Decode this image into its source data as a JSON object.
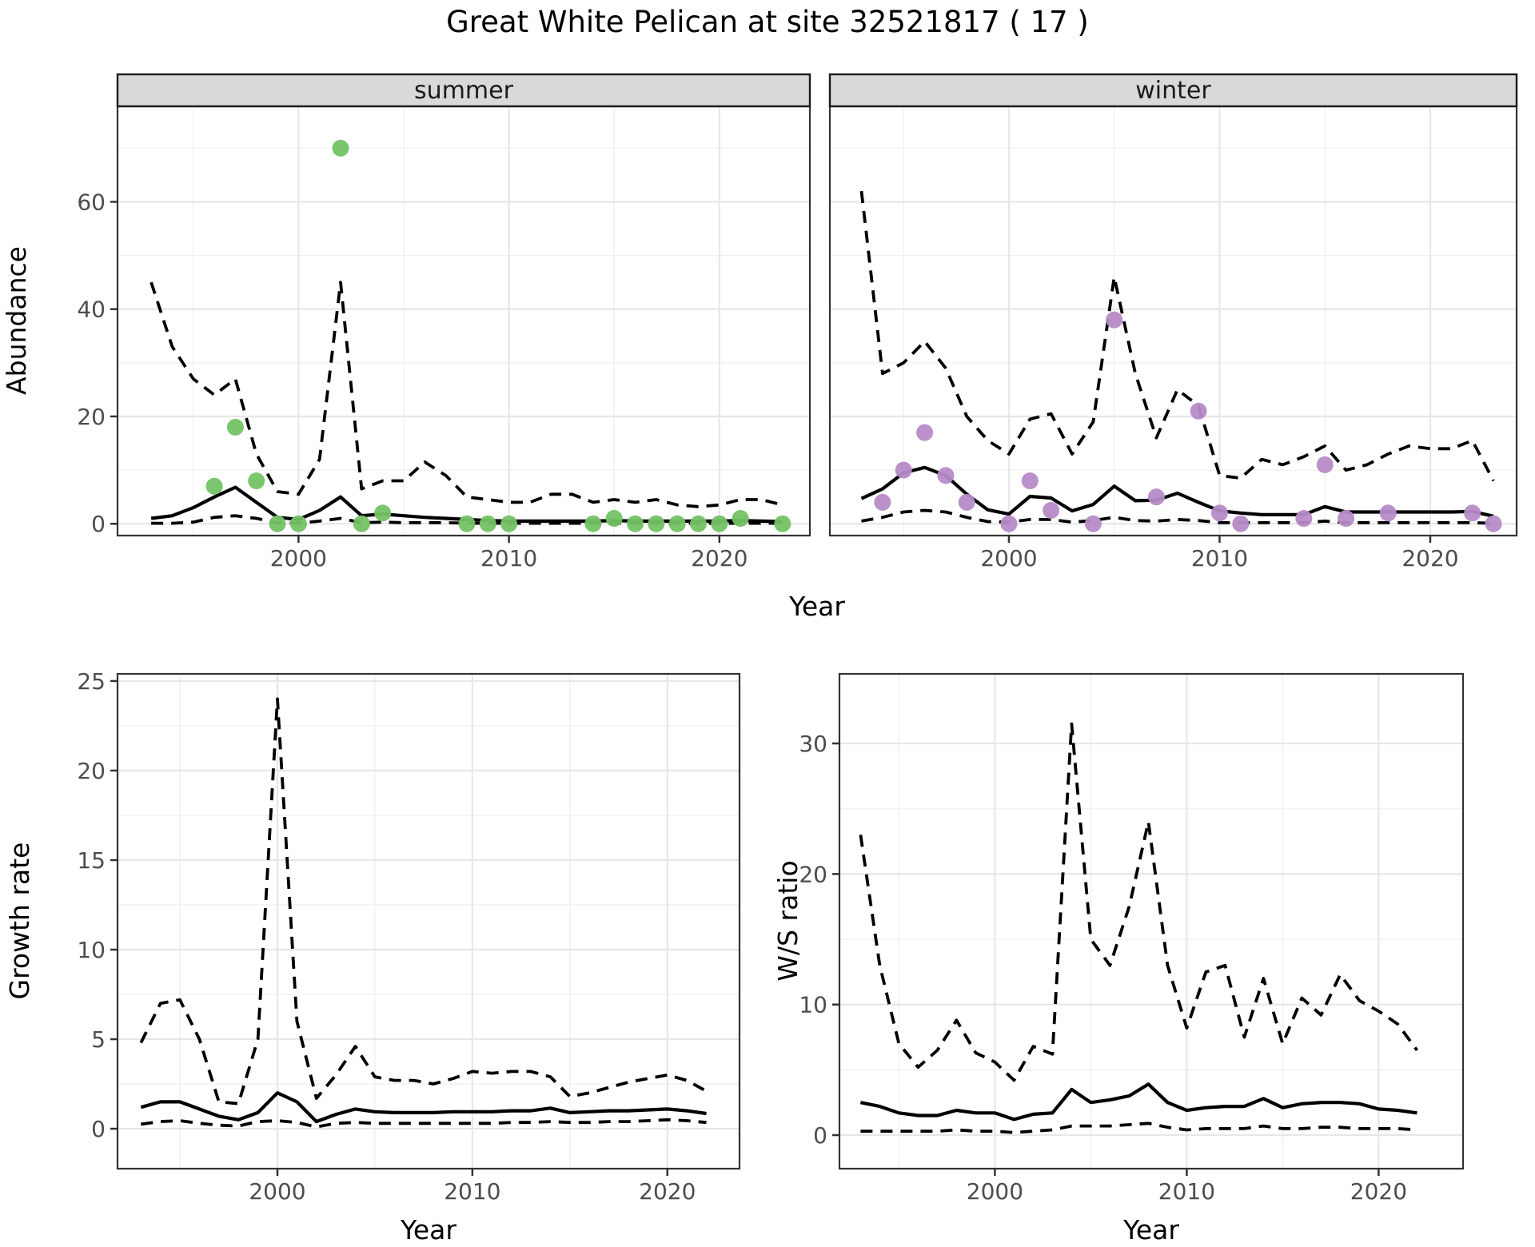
{
  "title": "Great White Pelican at site 32521817 ( 17 )",
  "colors": {
    "summer_dot": "#74c265",
    "winter_dot": "#b68bc7",
    "line": "#000000",
    "strip_bg": "#d9d9d9",
    "strip_border": "#1a1a1a",
    "panel_border": "#333333",
    "grid_major": "#e7e7e7",
    "grid_minor": "#f1f1f1",
    "tick_text": "#4d4d4d"
  },
  "chart_data": [
    {
      "id": "abundance-summer",
      "type": "line",
      "facet_label": "summer",
      "ylabel": "Abundance",
      "xlabel": "Year",
      "x_ticks": [
        2000,
        2010,
        2020
      ],
      "y_ticks": [
        0,
        20,
        40,
        60
      ],
      "xrange": [
        1993,
        2023
      ],
      "ylim": [
        0,
        70
      ],
      "grid": true,
      "legend": "none",
      "series": [
        {
          "name": "upper_ci",
          "style": "dashed",
          "x": [
            1993,
            1994,
            1995,
            1996,
            1997,
            1998,
            1999,
            2000,
            2001,
            2002,
            2003,
            2004,
            2005,
            2006,
            2007,
            2008,
            2009,
            2010,
            2011,
            2012,
            2013,
            2014,
            2015,
            2016,
            2017,
            2018,
            2019,
            2020,
            2021,
            2022,
            2023
          ],
          "y": [
            45,
            33,
            27,
            24,
            27,
            13,
            6,
            5.5,
            12,
            45,
            6.5,
            8,
            8,
            11.5,
            9,
            5,
            4.5,
            4,
            4,
            5.5,
            5.5,
            4,
            4.5,
            4,
            4.5,
            3.5,
            3.2,
            3.5,
            4.5,
            4.5,
            3.5
          ]
        },
        {
          "name": "lower_ci",
          "style": "dashed",
          "x": [
            1993,
            1994,
            1995,
            1996,
            1997,
            1998,
            1999,
            2000,
            2001,
            2002,
            2003,
            2004,
            2005,
            2006,
            2007,
            2008,
            2009,
            2010,
            2011,
            2012,
            2013,
            2014,
            2015,
            2016,
            2017,
            2018,
            2019,
            2020,
            2021,
            2022,
            2023
          ],
          "y": [
            0.1,
            0.1,
            0.3,
            1.2,
            1.5,
            1.0,
            0.2,
            0.1,
            0.5,
            1.0,
            0.2,
            0.3,
            0.2,
            0.2,
            0.2,
            0.1,
            0.1,
            0.1,
            0.1,
            0.1,
            0.1,
            0.1,
            0.1,
            0.1,
            0.1,
            0.1,
            0.1,
            0.1,
            0.1,
            0.1,
            0.1
          ]
        },
        {
          "name": "median",
          "style": "solid",
          "x": [
            1993,
            1994,
            1995,
            1996,
            1997,
            1998,
            1999,
            2000,
            2001,
            2002,
            2003,
            2004,
            2005,
            2006,
            2007,
            2008,
            2009,
            2010,
            2011,
            2012,
            2013,
            2014,
            2015,
            2016,
            2017,
            2018,
            2019,
            2020,
            2021,
            2022,
            2023
          ],
          "y": [
            1.0,
            1.5,
            3.0,
            5.0,
            6.8,
            4.0,
            1.2,
            0.8,
            2.5,
            5.0,
            1.5,
            1.8,
            1.5,
            1.2,
            1.0,
            0.8,
            0.6,
            0.5,
            0.5,
            0.5,
            0.5,
            0.5,
            0.6,
            0.5,
            0.5,
            0.5,
            0.5,
            0.5,
            0.6,
            0.5,
            0.4
          ]
        },
        {
          "name": "observations",
          "style": "points",
          "color_key": "summer_dot",
          "x": [
            1996,
            1997,
            1998,
            1999,
            2000,
            2002,
            2003,
            2004,
            2008,
            2009,
            2010,
            2014,
            2015,
            2016,
            2017,
            2018,
            2019,
            2020,
            2021,
            2023
          ],
          "y": [
            7,
            18,
            8,
            0,
            0,
            70,
            0,
            2,
            0,
            0,
            0,
            0,
            1,
            0,
            0,
            0,
            0,
            0,
            1,
            0
          ]
        }
      ]
    },
    {
      "id": "abundance-winter",
      "type": "line",
      "facet_label": "winter",
      "ylabel": null,
      "xlabel": null,
      "x_ticks": [
        2000,
        2010,
        2020
      ],
      "y_ticks": [
        0,
        20,
        40,
        60
      ],
      "xrange": [
        1993,
        2023
      ],
      "ylim": [
        0,
        70
      ],
      "grid": true,
      "legend": "none",
      "series": [
        {
          "name": "upper_ci",
          "style": "dashed",
          "x": [
            1993,
            1994,
            1995,
            1996,
            1997,
            1998,
            1999,
            2000,
            2001,
            2002,
            2003,
            2004,
            2005,
            2006,
            2007,
            2008,
            2009,
            2010,
            2011,
            2012,
            2013,
            2014,
            2015,
            2016,
            2017,
            2018,
            2019,
            2020,
            2021,
            2022,
            2023
          ],
          "y": [
            62,
            28,
            30,
            34,
            29,
            20,
            15.5,
            13,
            19.5,
            20.5,
            13,
            19,
            46,
            28,
            16,
            25,
            22,
            9,
            8.5,
            12,
            11,
            12.5,
            14.5,
            10,
            11,
            13,
            14.5,
            14,
            14,
            15.5,
            8
          ]
        },
        {
          "name": "lower_ci",
          "style": "dashed",
          "x": [
            1993,
            1994,
            1995,
            1996,
            1997,
            1998,
            1999,
            2000,
            2001,
            2002,
            2003,
            2004,
            2005,
            2006,
            2007,
            2008,
            2009,
            2010,
            2011,
            2012,
            2013,
            2014,
            2015,
            2016,
            2017,
            2018,
            2019,
            2020,
            2021,
            2022,
            2023
          ],
          "y": [
            0.5,
            1.2,
            2.2,
            2.5,
            2.2,
            1.2,
            0.4,
            0.3,
            0.8,
            0.8,
            0.3,
            0.6,
            1.2,
            0.6,
            0.5,
            0.8,
            0.6,
            0.2,
            0.2,
            0.2,
            0.2,
            0.2,
            0.5,
            0.2,
            0.2,
            0.2,
            0.2,
            0.2,
            0.2,
            0.2,
            0.1
          ]
        },
        {
          "name": "median",
          "style": "solid",
          "x": [
            1993,
            1994,
            1995,
            1996,
            1997,
            1998,
            1999,
            2000,
            2001,
            2002,
            2003,
            2004,
            2005,
            2006,
            2007,
            2008,
            2009,
            2010,
            2011,
            2012,
            2013,
            2014,
            2015,
            2016,
            2017,
            2018,
            2019,
            2020,
            2021,
            2022,
            2023
          ],
          "y": [
            4.7,
            6.5,
            9.5,
            10.5,
            9,
            5.5,
            2.6,
            1.8,
            5.1,
            4.8,
            2.4,
            3.6,
            7,
            4.3,
            4.4,
            5.7,
            4,
            2.4,
            2,
            1.7,
            1.7,
            1.7,
            3.2,
            2.2,
            2.2,
            2.2,
            2.2,
            2.2,
            2.2,
            2.3,
            1.4
          ]
        },
        {
          "name": "observations",
          "style": "points",
          "color_key": "winter_dot",
          "x": [
            1994,
            1995,
            1996,
            1997,
            1998,
            2000,
            2001,
            2002,
            2004,
            2005,
            2007,
            2009,
            2010,
            2011,
            2014,
            2015,
            2016,
            2018,
            2022,
            2023
          ],
          "y": [
            4,
            10,
            17,
            9,
            4,
            0,
            8,
            2.5,
            0,
            38,
            5,
            21,
            2,
            0,
            1,
            11,
            1,
            2,
            2,
            0
          ]
        }
      ]
    },
    {
      "id": "growth-rate",
      "type": "line",
      "facet_label": null,
      "ylabel": "Growth rate",
      "xlabel": "Year",
      "x_ticks": [
        2000,
        2010,
        2020
      ],
      "y_ticks": [
        0,
        5,
        10,
        15,
        20,
        25
      ],
      "xrange": [
        1993,
        2022
      ],
      "ylim": [
        0,
        24
      ],
      "grid": true,
      "legend": "none",
      "series": [
        {
          "name": "upper_ci",
          "style": "dashed",
          "x": [
            1993,
            1994,
            1995,
            1996,
            1997,
            1998,
            1999,
            2000,
            2001,
            2002,
            2003,
            2004,
            2005,
            2006,
            2007,
            2008,
            2009,
            2010,
            2011,
            2012,
            2013,
            2014,
            2015,
            2016,
            2017,
            2018,
            2019,
            2020,
            2021,
            2022
          ],
          "y": [
            4.8,
            7.0,
            7.2,
            5.0,
            1.5,
            1.4,
            5.0,
            24.0,
            6.0,
            1.7,
            3.0,
            4.6,
            2.9,
            2.7,
            2.7,
            2.5,
            2.8,
            3.2,
            3.1,
            3.2,
            3.2,
            2.9,
            1.8,
            2.0,
            2.3,
            2.6,
            2.8,
            3.0,
            2.7,
            2.1
          ]
        },
        {
          "name": "lower_ci",
          "style": "dashed",
          "x": [
            1993,
            1994,
            1995,
            1996,
            1997,
            1998,
            1999,
            2000,
            2001,
            2002,
            2003,
            2004,
            2005,
            2006,
            2007,
            2008,
            2009,
            2010,
            2011,
            2012,
            2013,
            2014,
            2015,
            2016,
            2017,
            2018,
            2019,
            2020,
            2021,
            2022
          ],
          "y": [
            0.25,
            0.4,
            0.45,
            0.3,
            0.2,
            0.15,
            0.4,
            0.45,
            0.35,
            0.1,
            0.3,
            0.35,
            0.3,
            0.3,
            0.3,
            0.3,
            0.3,
            0.3,
            0.3,
            0.35,
            0.35,
            0.4,
            0.35,
            0.35,
            0.4,
            0.4,
            0.45,
            0.5,
            0.45,
            0.35
          ]
        },
        {
          "name": "median",
          "style": "solid",
          "x": [
            1993,
            1994,
            1995,
            1996,
            1997,
            1998,
            1999,
            2000,
            2001,
            2002,
            2003,
            2004,
            2005,
            2006,
            2007,
            2008,
            2009,
            2010,
            2011,
            2012,
            2013,
            2014,
            2015,
            2016,
            2017,
            2018,
            2019,
            2020,
            2021,
            2022
          ],
          "y": [
            1.2,
            1.5,
            1.5,
            1.1,
            0.7,
            0.5,
            0.9,
            2.0,
            1.5,
            0.4,
            0.8,
            1.1,
            0.95,
            0.9,
            0.9,
            0.9,
            0.95,
            0.95,
            0.95,
            1.0,
            1.0,
            1.15,
            0.9,
            0.95,
            1.0,
            1.0,
            1.05,
            1.1,
            1.0,
            0.85
          ]
        }
      ]
    },
    {
      "id": "ws-ratio",
      "type": "line",
      "facet_label": null,
      "ylabel": "W/S ratio",
      "xlabel": "Year",
      "x_ticks": [
        2000,
        2010,
        2020
      ],
      "y_ticks": [
        0,
        10,
        20,
        30
      ],
      "xrange": [
        1993,
        2022
      ],
      "ylim": [
        0,
        31.5
      ],
      "grid": true,
      "legend": "none",
      "series": [
        {
          "name": "upper_ci",
          "style": "dashed",
          "x": [
            1993,
            1994,
            1995,
            1996,
            1997,
            1998,
            1999,
            2000,
            2001,
            2002,
            2003,
            2004,
            2005,
            2006,
            2007,
            2008,
            2009,
            2010,
            2011,
            2012,
            2013,
            2014,
            2015,
            2016,
            2017,
            2018,
            2019,
            2020,
            2021,
            2022
          ],
          "y": [
            23,
            13,
            7,
            5.2,
            6.5,
            8.8,
            6.3,
            5.6,
            4.2,
            6.8,
            6.2,
            31.5,
            15,
            13,
            17.5,
            24,
            13,
            8.2,
            12.5,
            13,
            7.5,
            12,
            7,
            10.5,
            9.2,
            12.3,
            10.3,
            9.5,
            8.5,
            6.5
          ]
        },
        {
          "name": "lower_ci",
          "style": "dashed",
          "x": [
            1993,
            1994,
            1995,
            1996,
            1997,
            1998,
            1999,
            2000,
            2001,
            2002,
            2003,
            2004,
            2005,
            2006,
            2007,
            2008,
            2009,
            2010,
            2011,
            2012,
            2013,
            2014,
            2015,
            2016,
            2017,
            2018,
            2019,
            2020,
            2021,
            2022
          ],
          "y": [
            0.3,
            0.3,
            0.3,
            0.3,
            0.3,
            0.4,
            0.3,
            0.3,
            0.2,
            0.3,
            0.4,
            0.7,
            0.7,
            0.7,
            0.8,
            0.9,
            0.6,
            0.4,
            0.5,
            0.5,
            0.5,
            0.7,
            0.5,
            0.5,
            0.6,
            0.6,
            0.5,
            0.5,
            0.5,
            0.4
          ]
        },
        {
          "name": "median",
          "style": "solid",
          "x": [
            1993,
            1994,
            1995,
            1996,
            1997,
            1998,
            1999,
            2000,
            2001,
            2002,
            2003,
            2004,
            2005,
            2006,
            2007,
            2008,
            2009,
            2010,
            2011,
            2012,
            2013,
            2014,
            2015,
            2016,
            2017,
            2018,
            2019,
            2020,
            2021,
            2022
          ],
          "y": [
            2.5,
            2.2,
            1.7,
            1.5,
            1.5,
            1.9,
            1.7,
            1.7,
            1.2,
            1.6,
            1.7,
            3.5,
            2.5,
            2.7,
            3.0,
            3.9,
            2.5,
            1.9,
            2.1,
            2.2,
            2.2,
            2.8,
            2.1,
            2.4,
            2.5,
            2.5,
            2.4,
            2.0,
            1.9,
            1.7
          ]
        }
      ]
    }
  ]
}
